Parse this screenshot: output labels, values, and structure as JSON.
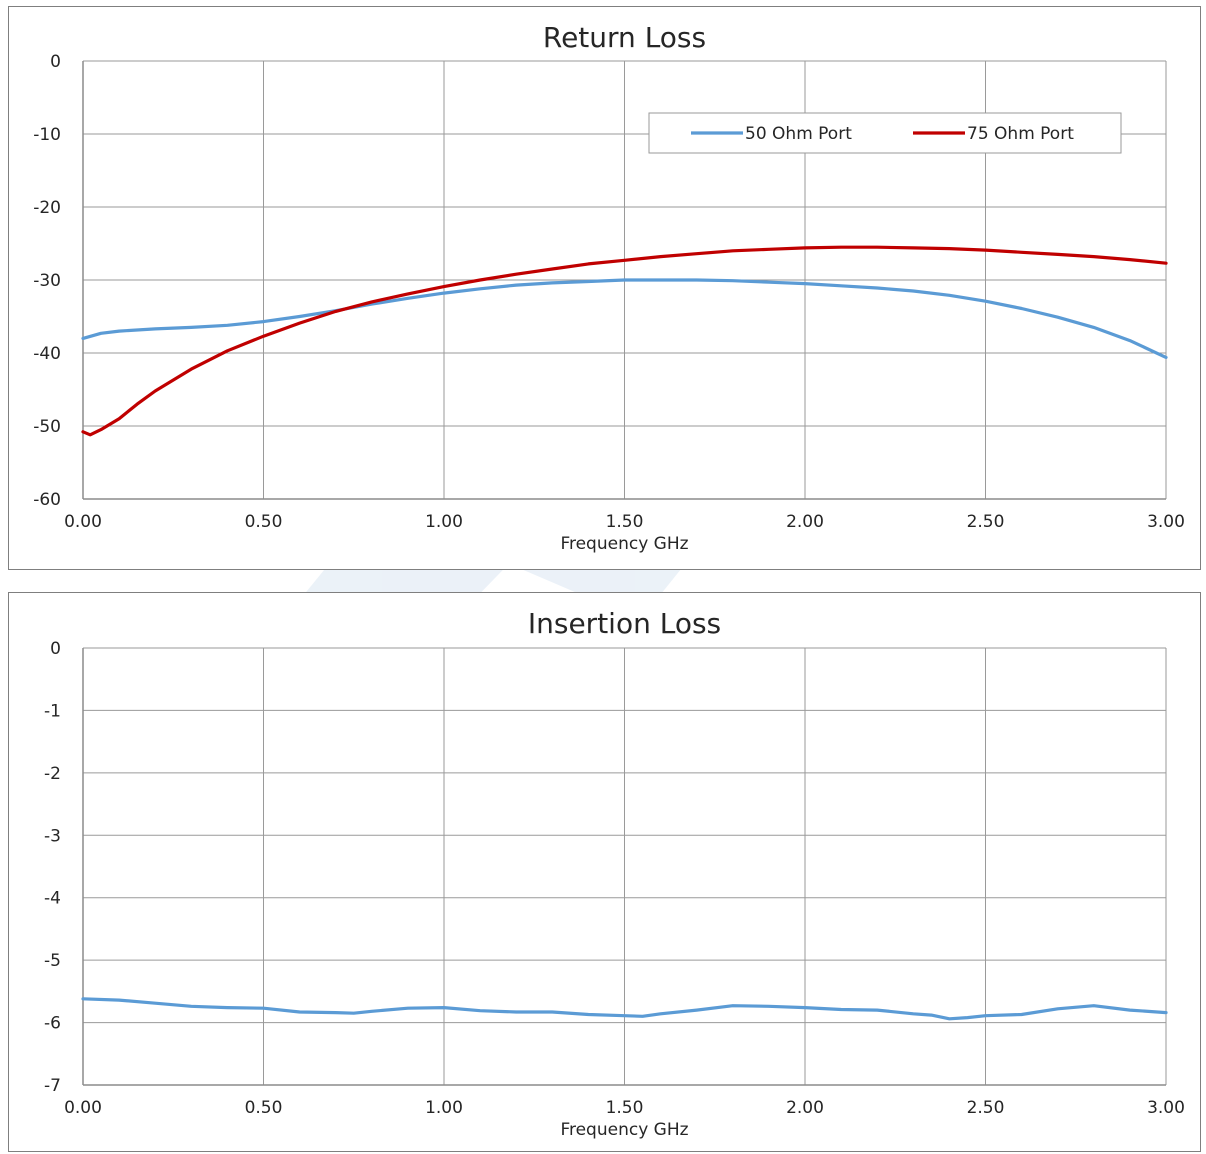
{
  "chart_data": [
    {
      "type": "line",
      "title": "Return Loss",
      "xlabel": "Frequency GHz",
      "ylabel": "",
      "xlim": [
        0,
        3
      ],
      "ylim": [
        -60,
        0
      ],
      "x_ticks": [
        "0.00",
        "0.50",
        "1.00",
        "1.50",
        "2.00",
        "2.50",
        "3.00"
      ],
      "y_ticks": [
        "0",
        "-10",
        "-20",
        "-30",
        "-40",
        "-50",
        "-60"
      ],
      "grid": true,
      "legend_position": "top-right",
      "series": [
        {
          "name": "50 Ohm Port",
          "color": "#5b9bd5",
          "points": [
            [
              0.0,
              -38.0
            ],
            [
              0.05,
              -37.3
            ],
            [
              0.1,
              -37.0
            ],
            [
              0.2,
              -36.7
            ],
            [
              0.3,
              -36.5
            ],
            [
              0.4,
              -36.2
            ],
            [
              0.5,
              -35.7
            ],
            [
              0.6,
              -35.0
            ],
            [
              0.7,
              -34.2
            ],
            [
              0.8,
              -33.3
            ],
            [
              0.9,
              -32.5
            ],
            [
              1.0,
              -31.8
            ],
            [
              1.1,
              -31.2
            ],
            [
              1.2,
              -30.7
            ],
            [
              1.3,
              -30.4
            ],
            [
              1.4,
              -30.2
            ],
            [
              1.5,
              -30.0
            ],
            [
              1.6,
              -30.0
            ],
            [
              1.7,
              -30.0
            ],
            [
              1.8,
              -30.1
            ],
            [
              1.9,
              -30.3
            ],
            [
              2.0,
              -30.5
            ],
            [
              2.1,
              -30.8
            ],
            [
              2.2,
              -31.1
            ],
            [
              2.3,
              -31.5
            ],
            [
              2.4,
              -32.1
            ],
            [
              2.5,
              -32.9
            ],
            [
              2.6,
              -33.9
            ],
            [
              2.7,
              -35.1
            ],
            [
              2.8,
              -36.5
            ],
            [
              2.9,
              -38.3
            ],
            [
              3.0,
              -40.6
            ]
          ]
        },
        {
          "name": "75 Ohm Port",
          "color": "#c00000",
          "points": [
            [
              0.0,
              -50.8
            ],
            [
              0.02,
              -51.2
            ],
            [
              0.05,
              -50.5
            ],
            [
              0.1,
              -49.0
            ],
            [
              0.15,
              -47.0
            ],
            [
              0.2,
              -45.2
            ],
            [
              0.3,
              -42.2
            ],
            [
              0.4,
              -39.7
            ],
            [
              0.5,
              -37.7
            ],
            [
              0.6,
              -35.9
            ],
            [
              0.7,
              -34.3
            ],
            [
              0.8,
              -33.0
            ],
            [
              0.9,
              -31.9
            ],
            [
              1.0,
              -30.9
            ],
            [
              1.1,
              -30.0
            ],
            [
              1.2,
              -29.2
            ],
            [
              1.3,
              -28.5
            ],
            [
              1.4,
              -27.8
            ],
            [
              1.5,
              -27.3
            ],
            [
              1.6,
              -26.8
            ],
            [
              1.7,
              -26.4
            ],
            [
              1.8,
              -26.0
            ],
            [
              1.9,
              -25.8
            ],
            [
              2.0,
              -25.6
            ],
            [
              2.1,
              -25.5
            ],
            [
              2.2,
              -25.5
            ],
            [
              2.3,
              -25.6
            ],
            [
              2.4,
              -25.7
            ],
            [
              2.5,
              -25.9
            ],
            [
              2.6,
              -26.2
            ],
            [
              2.7,
              -26.5
            ],
            [
              2.8,
              -26.8
            ],
            [
              2.9,
              -27.2
            ],
            [
              3.0,
              -27.7
            ]
          ]
        }
      ]
    },
    {
      "type": "line",
      "title": "Insertion Loss",
      "xlabel": "Frequency GHz",
      "ylabel": "",
      "xlim": [
        0,
        3
      ],
      "ylim": [
        -7,
        0
      ],
      "x_ticks": [
        "0.00",
        "0.50",
        "1.00",
        "1.50",
        "2.00",
        "2.50",
        "3.00"
      ],
      "y_ticks": [
        "0",
        "-1",
        "-2",
        "-3",
        "-4",
        "-5",
        "-6",
        "-7"
      ],
      "grid": true,
      "series": [
        {
          "color": "#5b9bd5",
          "points": [
            [
              0.0,
              -5.62
            ],
            [
              0.1,
              -5.64
            ],
            [
              0.2,
              -5.69
            ],
            [
              0.3,
              -5.74
            ],
            [
              0.4,
              -5.76
            ],
            [
              0.5,
              -5.77
            ],
            [
              0.6,
              -5.83
            ],
            [
              0.7,
              -5.84
            ],
            [
              0.75,
              -5.85
            ],
            [
              0.8,
              -5.82
            ],
            [
              0.9,
              -5.77
            ],
            [
              1.0,
              -5.76
            ],
            [
              1.1,
              -5.81
            ],
            [
              1.2,
              -5.83
            ],
            [
              1.3,
              -5.83
            ],
            [
              1.4,
              -5.87
            ],
            [
              1.5,
              -5.89
            ],
            [
              1.55,
              -5.9
            ],
            [
              1.6,
              -5.86
            ],
            [
              1.7,
              -5.8
            ],
            [
              1.8,
              -5.73
            ],
            [
              1.9,
              -5.74
            ],
            [
              2.0,
              -5.76
            ],
            [
              2.1,
              -5.79
            ],
            [
              2.2,
              -5.8
            ],
            [
              2.3,
              -5.86
            ],
            [
              2.35,
              -5.88
            ],
            [
              2.4,
              -5.94
            ],
            [
              2.45,
              -5.92
            ],
            [
              2.5,
              -5.89
            ],
            [
              2.6,
              -5.87
            ],
            [
              2.7,
              -5.78
            ],
            [
              2.8,
              -5.73
            ],
            [
              2.9,
              -5.8
            ],
            [
              3.0,
              -5.84
            ]
          ]
        }
      ]
    }
  ]
}
